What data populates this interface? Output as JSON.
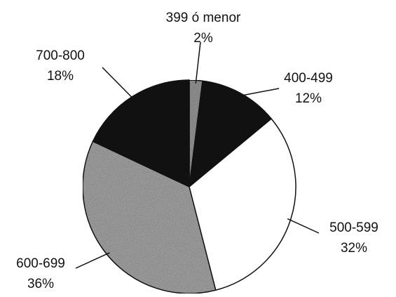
{
  "chart_data": {
    "type": "pie",
    "categories": [
      "399 ó menor",
      "400-499",
      "500-599",
      "600-699",
      "700-800"
    ],
    "values": [
      2,
      12,
      32,
      36,
      18
    ],
    "value_labels": [
      "2%",
      "12%",
      "32%",
      "36%",
      "18%"
    ],
    "colors": [
      "#9a9a9a",
      "#111111",
      "#ffffff",
      "#a8a8a8",
      "#111111"
    ]
  }
}
